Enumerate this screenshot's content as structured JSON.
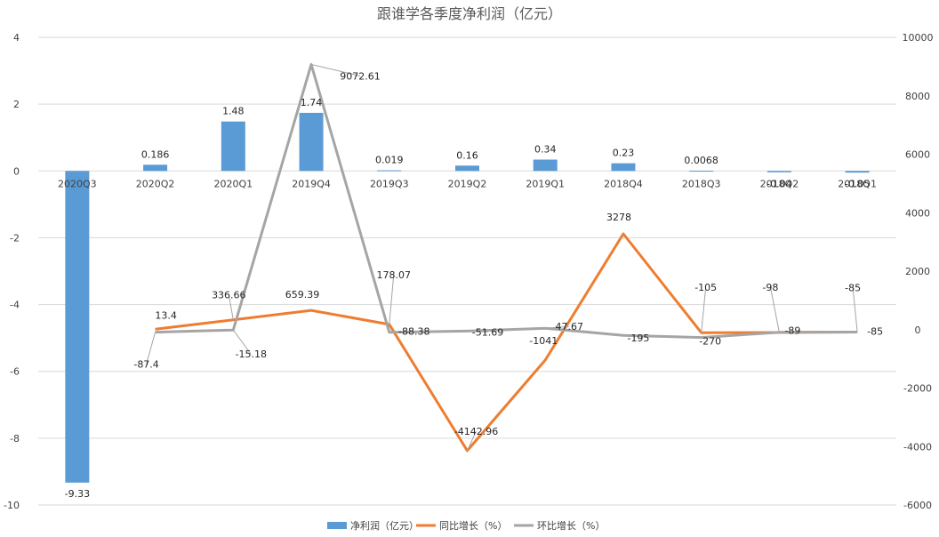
{
  "chart_data": {
    "type": "bar",
    "title": "跟谁学各季度净利润（亿元）",
    "categories": [
      "2020Q3",
      "2020Q2",
      "2020Q1",
      "2019Q4",
      "2019Q3",
      "2019Q2",
      "2019Q1",
      "2018Q4",
      "2018Q3",
      "2018Q2",
      "2018Q1"
    ],
    "y_left": {
      "lim": [
        -10,
        4
      ],
      "ticks": [
        "4",
        "2",
        "0",
        "-2",
        "-4",
        "-6",
        "-8",
        "-10"
      ]
    },
    "y_right": {
      "lim": [
        -6000,
        10000
      ],
      "ticks": [
        "10000",
        "8000",
        "6000",
        "4000",
        "2000",
        "0",
        "-2000",
        "-4000",
        "-6000"
      ]
    },
    "colors": {
      "bar": "#5b9bd5",
      "yoy": "#ed7d31",
      "qoq": "#a5a5a5",
      "grid": "#d9d9d9",
      "text": "#404040"
    },
    "legend_position": "bottom",
    "series": [
      {
        "name": "净利润（亿元）",
        "kind": "bar",
        "axis": "left",
        "values": [
          -9.33,
          0.186,
          1.48,
          1.74,
          0.019,
          0.16,
          0.34,
          0.23,
          0.0068,
          -0.04,
          -0.05
        ],
        "labels": [
          "-9.33",
          "0.186",
          "1.48",
          "1.74",
          "0.019",
          "0.16",
          "0.34",
          "0.23",
          "0.0068",
          "-0.04",
          "-0.05"
        ]
      },
      {
        "name": "同比增长（%）",
        "kind": "line",
        "axis": "right",
        "values": [
          null,
          13.4,
          336.66,
          659.39,
          178.07,
          -4142.96,
          -1041,
          3278,
          -105,
          -98,
          -85
        ],
        "labels": [
          null,
          "13.4",
          "336.66",
          "659.39",
          "178.07",
          "-4142.96",
          "-1041",
          "3278",
          "-105",
          "-98",
          "-85"
        ]
      },
      {
        "name": "环比增长（%）",
        "kind": "line",
        "axis": "right",
        "values": [
          null,
          -87.4,
          -15.18,
          9072.61,
          -88.38,
          -51.69,
          47.67,
          -195,
          -270,
          -89,
          -85
        ],
        "labels": [
          null,
          "-87.4",
          "-15.18",
          "9072.61",
          "-88.38",
          "-51.69",
          "47.67",
          "-195",
          "-270",
          "-89",
          "-85"
        ]
      }
    ]
  }
}
